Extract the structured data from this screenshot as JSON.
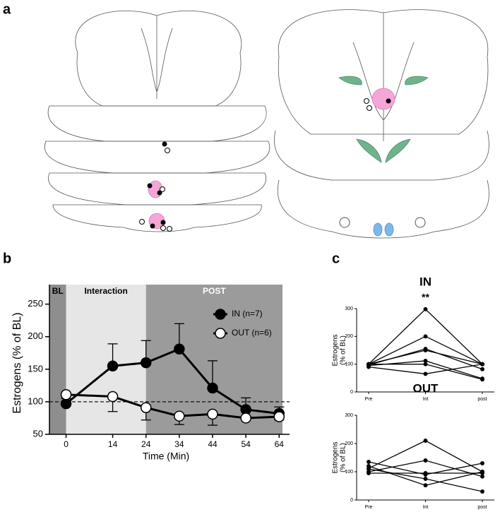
{
  "panel_labels": [
    "a",
    "b",
    "c"
  ],
  "chart_data": [
    {
      "type": "line",
      "xlabel": "Time (Min)",
      "ylabel": "Estrogens (% of BL)",
      "x": [
        0,
        14,
        24,
        34,
        44,
        54,
        64
      ],
      "xlim": [
        -5,
        65
      ],
      "xticks": [
        0,
        14,
        24,
        34,
        44,
        54,
        64
      ],
      "ylim": [
        50,
        280
      ],
      "yticks": [
        50,
        100,
        150,
        200,
        250
      ],
      "regions": [
        {
          "label": "BL",
          "start": -5,
          "end": 0,
          "color": "#8e8e8e",
          "label_color": "#000000"
        },
        {
          "label": "Interaction",
          "start": 0,
          "end": 24,
          "color": "#e6e6e6",
          "label_color": "#000000"
        },
        {
          "label": "POST",
          "start": 24,
          "end": 65,
          "color": "#9b9b9b",
          "label_color": "#ffffff"
        }
      ],
      "hline": 100,
      "legend": "upper right",
      "series": [
        {
          "name": "IN (n=7)",
          "color": "#000000",
          "marker_fill": "#000000",
          "error_side": "up",
          "values": [
            97,
            155,
            160,
            181,
            121,
            88,
            82
          ],
          "errors": [
            null,
            34,
            34,
            39,
            42,
            18,
            10
          ]
        },
        {
          "name": "OUT (n=6)",
          "color": "#000000",
          "marker_fill": "#ffffff",
          "error_side": "down",
          "values": [
            111,
            108,
            91,
            78,
            81,
            75,
            77
          ],
          "errors": [
            6,
            23,
            19,
            13,
            17,
            null,
            5
          ]
        }
      ]
    },
    {
      "type": "line",
      "title": "IN",
      "annotation": "**",
      "ylabel": [
        "Estrogens",
        "(% of BL)"
      ],
      "categories": [
        "Pre",
        "Int",
        "post"
      ],
      "ylim": [
        0,
        300
      ],
      "yticks": [
        0,
        100,
        200,
        300
      ],
      "series": [
        {
          "color": "#000000",
          "values": [
            100,
            298,
            100
          ]
        },
        {
          "color": "#000000",
          "values": [
            100,
            200,
            100
          ]
        },
        {
          "color": "#000000",
          "values": [
            97,
            155,
            82
          ]
        },
        {
          "color": "#000000",
          "values": [
            100,
            150,
            100
          ]
        },
        {
          "color": "#000000",
          "values": [
            95,
            112,
            48
          ]
        },
        {
          "color": "#000000",
          "values": [
            100,
            100,
            45
          ]
        },
        {
          "color": "#000000",
          "values": [
            90,
            65,
            100
          ]
        }
      ]
    },
    {
      "type": "line",
      "title": "OUT",
      "ylabel": [
        "Estrogens",
        "(% of BL)"
      ],
      "categories": [
        "Pre",
        "Int",
        "post"
      ],
      "ylim": [
        0,
        300
      ],
      "yticks": [
        0,
        100,
        200,
        300
      ],
      "series": [
        {
          "color": "#000000",
          "values": [
            112,
            210,
            100
          ]
        },
        {
          "color": "#000000",
          "values": [
            135,
            90,
            130
          ]
        },
        {
          "color": "#000000",
          "values": [
            100,
            140,
            83
          ]
        },
        {
          "color": "#000000",
          "values": [
            95,
            95,
            95
          ]
        },
        {
          "color": "#000000",
          "values": [
            120,
            52,
            100
          ]
        },
        {
          "color": "#000000",
          "values": [
            110,
            75,
            30
          ]
        }
      ]
    }
  ]
}
